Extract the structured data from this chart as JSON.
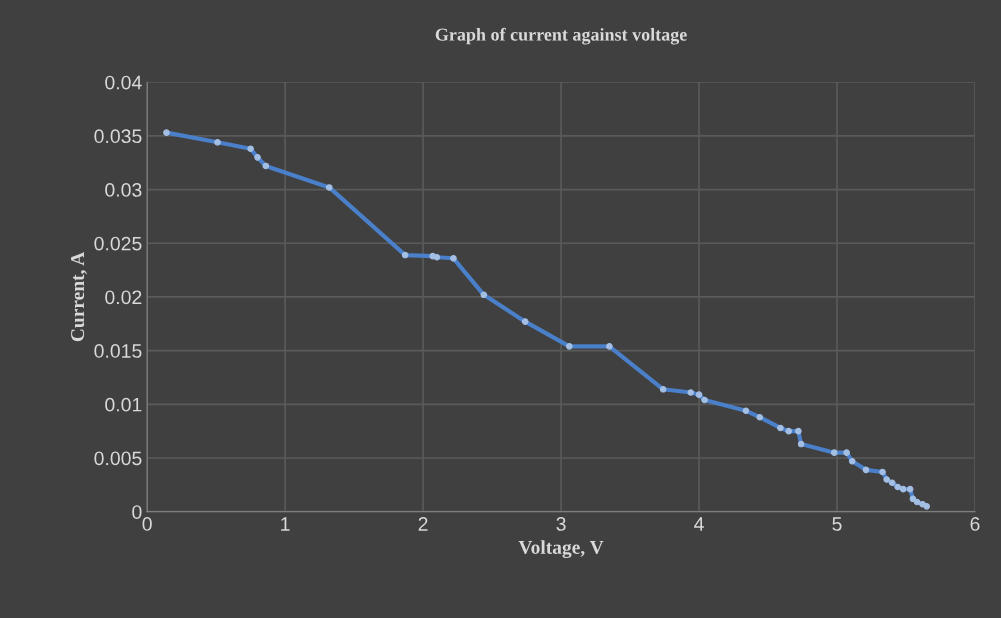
{
  "chart_data": {
    "type": "line",
    "title": "Graph of current against voltage",
    "xlabel": "Voltage, V",
    "ylabel": "Current, A",
    "x": [
      0.14,
      0.51,
      0.75,
      0.8,
      0.86,
      1.32,
      1.87,
      2.07,
      2.1,
      2.22,
      2.44,
      2.74,
      3.06,
      3.35,
      3.74,
      3.94,
      4.0,
      4.04,
      4.34,
      4.44,
      4.59,
      4.65,
      4.72,
      4.74,
      4.98,
      5.07,
      5.11,
      5.21,
      5.33,
      5.36,
      5.4,
      5.44,
      5.48,
      5.53,
      5.55,
      5.58,
      5.62,
      5.65
    ],
    "series": [
      {
        "color": "#4a7fc9",
        "values": [
          0.0353,
          0.0344,
          0.0338,
          0.033,
          0.0322,
          0.0302,
          0.0239,
          0.0238,
          0.0237,
          0.0236,
          0.0202,
          0.0177,
          0.0154,
          0.0154,
          0.0114,
          0.0111,
          0.0109,
          0.0104,
          0.0094,
          0.0088,
          0.0078,
          0.0075,
          0.0075,
          0.0063,
          0.0055,
          0.0055,
          0.0047,
          0.0039,
          0.0037,
          0.003,
          0.0027,
          0.0023,
          0.0021,
          0.0021,
          0.0012,
          0.0009,
          0.0007,
          0.0005
        ]
      }
    ],
    "xlim": [
      0,
      6
    ],
    "xticks": [
      0,
      1,
      2,
      3,
      4,
      5,
      6
    ],
    "ylim": [
      0,
      0.04
    ],
    "yticks": [
      0,
      0.005,
      0.01,
      0.015,
      0.02,
      0.025,
      0.03,
      0.035,
      0.04
    ],
    "grid": true,
    "marker": "circle",
    "line_style": "solid"
  }
}
